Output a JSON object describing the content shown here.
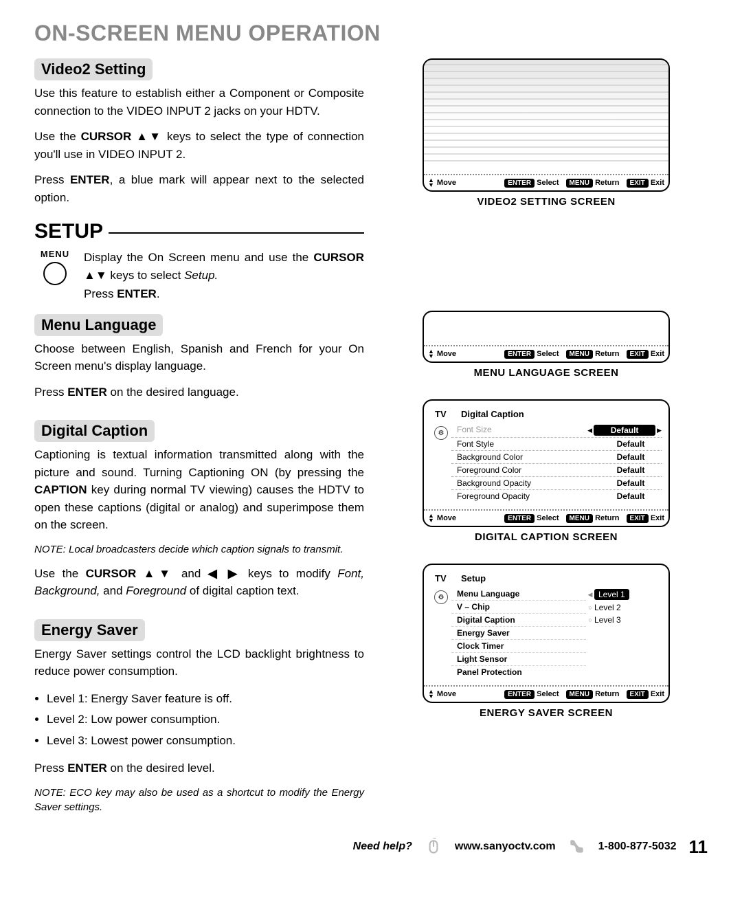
{
  "page_title": "ON-SCREEN MENU OPERATION",
  "video2": {
    "heading": "Video2 Setting",
    "p1": "Use this feature to establish either a Component or Composite connection to the VIDEO INPUT 2 jacks on your HDTV.",
    "p2a": "Use the ",
    "p2b": "CURSOR ▲▼",
    "p2c": " keys to select the type of connection you'll use in VIDEO INPUT 2.",
    "p3a": "Press ",
    "p3b": "ENTER",
    "p3c": ", a blue mark will appear next to the selected option."
  },
  "setup": {
    "heading": "SETUP",
    "menu_label": "MENU",
    "p1a": "Display the On Screen menu and use the ",
    "p1b": "CURSOR ▲▼",
    "p1c": " keys to select ",
    "p1d": "Setup.",
    "p2a": "Press ",
    "p2b": "ENTER",
    "p2c": "."
  },
  "menu_lang": {
    "heading": "Menu Language",
    "p1": "Choose between English, Spanish and French for your On Screen menu's display language.",
    "p2a": "Press ",
    "p2b": "ENTER",
    "p2c": " on the desired language."
  },
  "digital_caption": {
    "heading": "Digital Caption",
    "p1a": "Captioning is textual information transmitted along with the picture and sound. Turning Captioning ON (by pressing the ",
    "p1b": "CAPTION",
    "p1c": " key during normal TV viewing) causes the HDTV to open these captions (digital or analog) and superimpose them on the screen.",
    "note": "NOTE: Local broadcasters decide which caption signals to transmit.",
    "p2a": "Use the ",
    "p2b": "CURSOR ▲▼",
    "p2c": " and ",
    "p2d": "◀ ▶",
    "p2e": " keys to modify ",
    "p2f": "Font, Background,",
    "p2g": " and ",
    "p2h": "Foreground",
    "p2i": " of digital caption text."
  },
  "energy_saver": {
    "heading": "Energy Saver",
    "p1": "Energy Saver settings control the LCD backlight brightness to reduce power consumption.",
    "b1": "Level 1: Energy Saver feature is off.",
    "b2": "Level 2: Low power consumption.",
    "b3": "Level 3: Lowest power consumption.",
    "p2a": "Press ",
    "p2b": "ENTER",
    "p2c": " on the desired level.",
    "note": "NOTE: ECO key may also be used as a shortcut to modify the Energy Saver settings."
  },
  "screens": {
    "video2_caption": "VIDEO2 SETTING SCREEN",
    "menu_lang_caption": "MENU LANGUAGE SCREEN",
    "digital_caption_caption": "DIGITAL CAPTION SCREEN",
    "energy_saver_caption": "ENERGY SAVER SCREEN",
    "helpbar": {
      "move": "Move",
      "enter": "ENTER",
      "select": "Select",
      "menu": "MENU",
      "return": "Return",
      "exit": "EXIT",
      "exit_lbl": "Exit"
    },
    "dc": {
      "tv": "TV",
      "title": "Digital Caption",
      "rows": [
        {
          "lbl": "Font Size",
          "val": "Default",
          "sel": true
        },
        {
          "lbl": "Font Style",
          "val": "Default"
        },
        {
          "lbl": "Background Color",
          "val": "Default"
        },
        {
          "lbl": "Foreground Color",
          "val": "Default"
        },
        {
          "lbl": "Background Opacity",
          "val": "Default"
        },
        {
          "lbl": "Foreground Opacity",
          "val": "Default"
        }
      ]
    },
    "es": {
      "tv": "TV",
      "title": "Setup",
      "menu_items": [
        "Menu Language",
        "V – Chip",
        "Digital Caption",
        "Energy Saver",
        "Clock Timer",
        "Light Sensor",
        "Panel Protection"
      ],
      "options": [
        "Level 1",
        "Level 2",
        "Level 3"
      ],
      "selected": 0
    }
  },
  "footer": {
    "need": "Need help?",
    "url": "www.sanyoctv.com",
    "phone": "1-800-877-5032",
    "page": "11"
  }
}
